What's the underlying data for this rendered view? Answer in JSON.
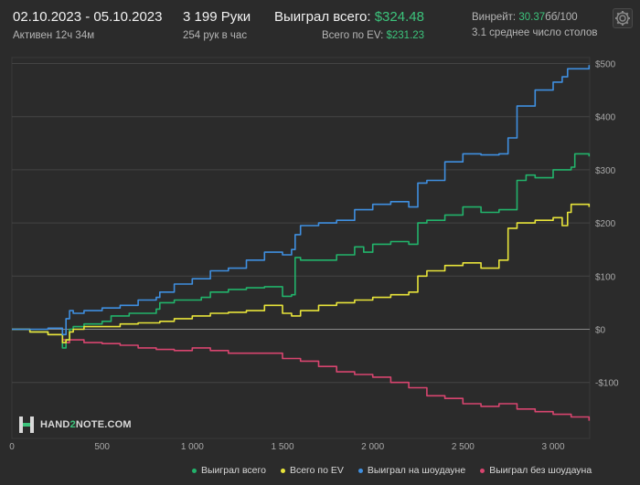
{
  "header": {
    "date_range": "02.10.2023 - 05.10.2023",
    "active_time": "Активен 12ч 34м",
    "hands_count": "3 199 Руки",
    "hands_per_hour": "254 рук в час",
    "won_total_label": "Выиграл всего:",
    "won_total_value": "$324.48",
    "ev_total_label": "Всего по EV:",
    "ev_total_value": "$231.23",
    "winrate_label": "Винрейт:",
    "winrate_value": "30.37",
    "winrate_unit": "бб/100",
    "avg_tables": "3.1 среднее число столов"
  },
  "settings_icon": "gear-icon",
  "logo": {
    "text_before": "HAND",
    "text_accent": "2",
    "text_after": "NOTE.COM",
    "icon": "hand2note-logo-icon"
  },
  "colors": {
    "background": "#2b2b2b",
    "won_total": "#22b36b",
    "ev_total": "#e8e43a",
    "showdown": "#3f8fe0",
    "non_showdown": "#d8456f",
    "accent_green": "#3cc47c"
  },
  "chart_data": {
    "type": "line",
    "title": "",
    "xlabel": "",
    "ylabel": "",
    "xlim": [
      0,
      3199
    ],
    "ylim": [
      -175,
      510
    ],
    "x_ticks": [
      0,
      500,
      1000,
      1500,
      2000,
      2500,
      3000
    ],
    "x_tick_labels": [
      "0",
      "500",
      "1 000",
      "1 500",
      "2 000",
      "2 500",
      "3 000"
    ],
    "y_ticks": [
      -100,
      0,
      100,
      200,
      300,
      400,
      500
    ],
    "y_tick_labels": [
      "-$100",
      "$0",
      "$100",
      "$200",
      "$300",
      "$400",
      "$500"
    ],
    "grid": true,
    "legend_position": "bottom",
    "series": [
      {
        "name": "Выиграл всего",
        "color": "#22b36b",
        "x": [
          0,
          100,
          200,
          280,
          300,
          320,
          340,
          400,
          500,
          550,
          650,
          800,
          820,
          900,
          1050,
          1100,
          1200,
          1300,
          1400,
          1500,
          1550,
          1570,
          1600,
          1700,
          1800,
          1900,
          1950,
          2000,
          2100,
          2200,
          2250,
          2300,
          2400,
          2500,
          2600,
          2700,
          2800,
          2850,
          2900,
          3000,
          3060,
          3100,
          3120,
          3199
        ],
        "y": [
          0,
          -5,
          -10,
          -35,
          -20,
          0,
          5,
          10,
          15,
          25,
          30,
          38,
          50,
          55,
          60,
          70,
          75,
          78,
          80,
          62,
          65,
          135,
          130,
          130,
          140,
          155,
          145,
          160,
          165,
          160,
          200,
          205,
          215,
          230,
          220,
          225,
          280,
          290,
          285,
          300,
          300,
          305,
          330,
          325
        ]
      },
      {
        "name": "Всего по EV",
        "color": "#e8e43a",
        "x": [
          0,
          100,
          200,
          280,
          300,
          320,
          340,
          400,
          500,
          600,
          700,
          800,
          820,
          900,
          1000,
          1100,
          1200,
          1300,
          1400,
          1500,
          1550,
          1600,
          1700,
          1800,
          1900,
          2000,
          2100,
          2200,
          2250,
          2300,
          2400,
          2500,
          2600,
          2700,
          2750,
          2800,
          2900,
          3000,
          3050,
          3080,
          3100,
          3199
        ],
        "y": [
          0,
          -5,
          -10,
          -25,
          -20,
          -5,
          0,
          5,
          5,
          10,
          12,
          12,
          15,
          20,
          25,
          30,
          32,
          35,
          45,
          30,
          25,
          35,
          45,
          50,
          55,
          60,
          65,
          70,
          100,
          110,
          120,
          125,
          115,
          130,
          190,
          200,
          205,
          210,
          195,
          220,
          235,
          230
        ]
      },
      {
        "name": "Выиграл на шоудауне",
        "color": "#3f8fe0",
        "x": [
          0,
          100,
          200,
          280,
          300,
          320,
          340,
          400,
          500,
          600,
          700,
          800,
          820,
          900,
          1000,
          1100,
          1200,
          1300,
          1400,
          1500,
          1550,
          1570,
          1600,
          1700,
          1800,
          1900,
          2000,
          2100,
          2200,
          2250,
          2300,
          2400,
          2500,
          2600,
          2700,
          2750,
          2800,
          2900,
          3000,
          3050,
          3080,
          3199
        ],
        "y": [
          0,
          0,
          2,
          -10,
          20,
          35,
          30,
          35,
          40,
          45,
          55,
          60,
          70,
          85,
          95,
          110,
          115,
          130,
          145,
          140,
          150,
          178,
          195,
          200,
          205,
          225,
          235,
          240,
          230,
          275,
          280,
          315,
          330,
          328,
          330,
          360,
          420,
          450,
          465,
          475,
          490,
          497
        ]
      },
      {
        "name": "Выиграл без шоудауна",
        "color": "#d8456f",
        "x": [
          0,
          100,
          200,
          280,
          300,
          320,
          340,
          400,
          500,
          600,
          700,
          800,
          900,
          1000,
          1100,
          1200,
          1300,
          1400,
          1500,
          1600,
          1700,
          1800,
          1900,
          2000,
          2100,
          2200,
          2300,
          2400,
          2500,
          2600,
          2700,
          2800,
          2900,
          3000,
          3100,
          3199
        ],
        "y": [
          0,
          -5,
          -10,
          -20,
          -25,
          -20,
          -20,
          -25,
          -27,
          -30,
          -35,
          -38,
          -40,
          -35,
          -40,
          -45,
          -45,
          -45,
          -55,
          -60,
          -70,
          -80,
          -85,
          -90,
          -100,
          -110,
          -125,
          -130,
          -140,
          -145,
          -140,
          -150,
          -155,
          -160,
          -165,
          -172
        ]
      }
    ]
  }
}
